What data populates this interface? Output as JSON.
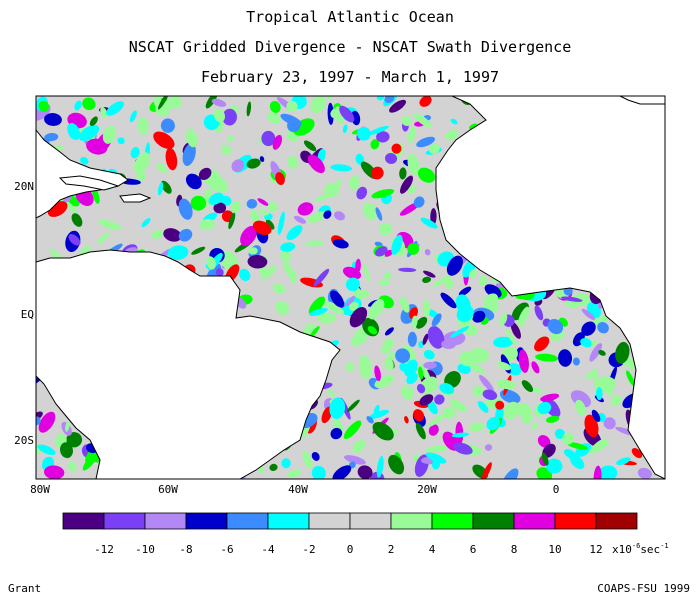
{
  "header": {
    "title": "Tropical Atlantic Ocean",
    "subtitle": "NSCAT Gridded Divergence - NSCAT Swath Divergence",
    "date_range": "February 23, 1997 - March 1, 1997"
  },
  "map": {
    "lat_labels": [
      "20N",
      "EQ",
      "20S"
    ],
    "lon_labels": [
      "80W",
      "60W",
      "40W",
      "20W",
      "0"
    ]
  },
  "legend": {
    "colors": [
      "#4b0082",
      "#7b3ff5",
      "#b388f5",
      "#0000cd",
      "#3c8cff",
      "#00ffff",
      "#d3d3d3",
      "#d3d3d3",
      "#98fb98",
      "#00ff00",
      "#008000",
      "#e000e0",
      "#ff0000",
      "#a00000"
    ],
    "tick_labels": [
      "-12",
      "-10",
      "-8",
      "-6",
      "-4",
      "-2",
      "0",
      "2",
      "4",
      "6",
      "8",
      "10",
      "12"
    ],
    "units": "x10",
    "units_exp": "-6",
    "units_tail": "sec",
    "units_tail_exp": "-1"
  },
  "footer": {
    "left": "Grant",
    "right": "COAPS-FSU 1999"
  }
}
